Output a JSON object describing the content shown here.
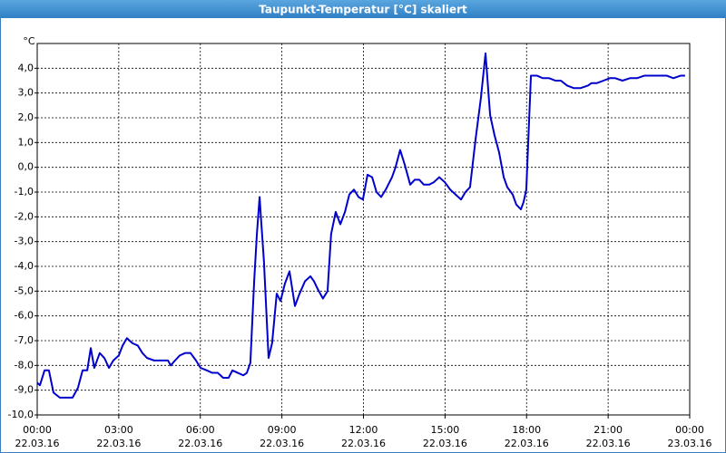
{
  "chart_data": {
    "type": "line",
    "title": "Taupunkt-Temperatur [°C] skaliert",
    "y_unit": "°C",
    "xlim": [
      0,
      24
    ],
    "ylim": [
      -10,
      5
    ],
    "xticks": [
      {
        "value": 0,
        "label": "00:00"
      },
      {
        "value": 3,
        "label": "03:00"
      },
      {
        "value": 6,
        "label": "06:00"
      },
      {
        "value": 9,
        "label": "09:00"
      },
      {
        "value": 12,
        "label": "12:00"
      },
      {
        "value": 15,
        "label": "15:00"
      },
      {
        "value": 18,
        "label": "18:00"
      },
      {
        "value": 21,
        "label": "21:00"
      },
      {
        "value": 24,
        "label": "00:00"
      }
    ],
    "xtick_dates": [
      "22.03.16",
      "22.03.16",
      "22.03.16",
      "22.03.16",
      "22.03.16",
      "22.03.16",
      "22.03.16",
      "22.03.16",
      "23.03.16"
    ],
    "yticks": [
      {
        "value": 4,
        "label": "4,0"
      },
      {
        "value": 3,
        "label": "3,0"
      },
      {
        "value": 2,
        "label": "2,0"
      },
      {
        "value": 1,
        "label": "1,0"
      },
      {
        "value": 0,
        "label": "0,0"
      },
      {
        "value": -1,
        "label": "-1,0"
      },
      {
        "value": -2,
        "label": "-2,0"
      },
      {
        "value": -3,
        "label": "-3,0"
      },
      {
        "value": -4,
        "label": "-4,0"
      },
      {
        "value": -5,
        "label": "-5,0"
      },
      {
        "value": -6,
        "label": "-6,0"
      },
      {
        "value": -7,
        "label": "-7,0"
      },
      {
        "value": -8,
        "label": "-8,0"
      },
      {
        "value": -9,
        "label": "-9,0"
      },
      {
        "value": -10,
        "label": "-10,0"
      }
    ],
    "grid": true,
    "x": [
      0,
      0.1,
      0.27,
      0.43,
      0.6,
      0.83,
      1.07,
      1.3,
      1.5,
      1.67,
      1.84,
      1.97,
      2.1,
      2.3,
      2.47,
      2.64,
      2.8,
      3.0,
      3.14,
      3.3,
      3.5,
      3.7,
      3.87,
      4.04,
      4.3,
      4.57,
      4.81,
      4.91,
      5.07,
      5.24,
      5.44,
      5.64,
      5.84,
      6.01,
      6.24,
      6.44,
      6.64,
      6.84,
      7.04,
      7.18,
      7.38,
      7.58,
      7.71,
      7.84,
      7.98,
      8.08,
      8.18,
      8.24,
      8.34,
      8.51,
      8.64,
      8.81,
      8.95,
      9.11,
      9.28,
      9.48,
      9.65,
      9.85,
      10.05,
      10.18,
      10.31,
      10.51,
      10.68,
      10.81,
      10.98,
      11.15,
      11.32,
      11.48,
      11.65,
      11.82,
      11.98,
      12.15,
      12.32,
      12.48,
      12.65,
      12.82,
      13.05,
      13.18,
      13.35,
      13.52,
      13.72,
      13.89,
      14.05,
      14.22,
      14.42,
      14.59,
      14.79,
      14.99,
      15.19,
      15.39,
      15.59,
      15.75,
      15.92,
      16.12,
      16.32,
      16.49,
      16.66,
      16.82,
      16.99,
      17.16,
      17.29,
      17.49,
      17.62,
      17.79,
      17.89,
      17.99,
      18.16,
      18.39,
      18.59,
      18.83,
      19.06,
      19.26,
      19.49,
      19.73,
      19.99,
      20.26,
      20.39,
      20.59,
      20.83,
      21.06,
      21.26,
      21.53,
      21.8,
      22.06,
      22.33,
      22.6,
      22.86,
      23.16,
      23.4,
      23.66,
      23.83
    ],
    "series": [
      {
        "color": "#0000cc",
        "values": [
          -8.7,
          -8.8,
          -8.2,
          -8.2,
          -9.1,
          -9.3,
          -9.3,
          -9.3,
          -8.9,
          -8.2,
          -8.2,
          -7.3,
          -8.1,
          -7.5,
          -7.7,
          -8.1,
          -7.8,
          -7.6,
          -7.2,
          -6.9,
          -7.1,
          -7.2,
          -7.5,
          -7.7,
          -7.8,
          -7.8,
          -7.8,
          -8.0,
          -7.8,
          -7.6,
          -7.5,
          -7.5,
          -7.8,
          -8.1,
          -8.2,
          -8.3,
          -8.3,
          -8.5,
          -8.5,
          -8.2,
          -8.3,
          -8.4,
          -8.3,
          -7.9,
          -4.6,
          -2.7,
          -1.2,
          -2.2,
          -3.8,
          -7.7,
          -7.1,
          -5.1,
          -5.4,
          -4.7,
          -4.2,
          -5.6,
          -5.1,
          -4.6,
          -4.4,
          -4.6,
          -4.9,
          -5.3,
          -5.0,
          -2.7,
          -1.8,
          -2.3,
          -1.8,
          -1.1,
          -0.9,
          -1.2,
          -1.3,
          -0.3,
          -0.4,
          -1.0,
          -1.2,
          -0.9,
          -0.4,
          0.0,
          0.7,
          0.1,
          -0.7,
          -0.5,
          -0.5,
          -0.7,
          -0.7,
          -0.6,
          -0.4,
          -0.6,
          -0.9,
          -1.1,
          -1.3,
          -1.0,
          -0.8,
          1.1,
          2.8,
          4.6,
          2.1,
          1.3,
          0.6,
          -0.4,
          -0.8,
          -1.1,
          -1.5,
          -1.7,
          -1.4,
          -0.9,
          3.7,
          3.7,
          3.6,
          3.6,
          3.5,
          3.5,
          3.3,
          3.2,
          3.2,
          3.3,
          3.4,
          3.4,
          3.5,
          3.6,
          3.6,
          3.5,
          3.6,
          3.6,
          3.7,
          3.7,
          3.7,
          3.7,
          3.6,
          3.7,
          3.7
        ]
      }
    ]
  }
}
